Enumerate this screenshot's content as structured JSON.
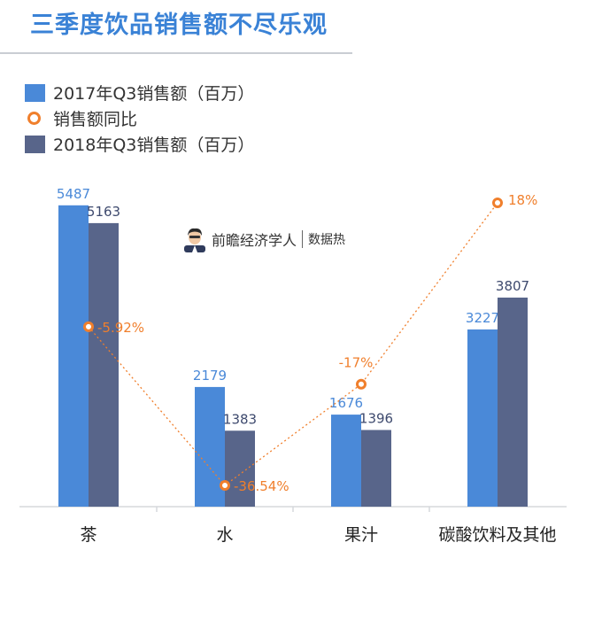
{
  "title": "三季度饮品销售额不尽乐观",
  "source": {
    "name": "前瞻经济学人",
    "tag": "数据热"
  },
  "colors": {
    "title": "#3a82d6",
    "s2017": "#4a89d8",
    "s2018": "#58658a",
    "yoy": "#f07f2c",
    "axis": "#d5d8dc",
    "label_dark": "#3e4a6e"
  },
  "legend": [
    {
      "label": "2017年Q3销售额（百万）",
      "kind": "bar",
      "series": "s2017"
    },
    {
      "label": "销售额同比",
      "kind": "dot",
      "series": "yoy"
    },
    {
      "label": "2018年Q3销售额（百万）",
      "kind": "bar",
      "series": "s2018"
    }
  ],
  "chart_data": {
    "type": "bar",
    "title": "三季度饮品销售额不尽乐观",
    "categories": [
      "茶",
      "水",
      "果汁",
      "碳酸饮料及其他"
    ],
    "series": [
      {
        "name": "2017年Q3销售额（百万）",
        "values": [
          5487,
          2179,
          1676,
          3227
        ]
      },
      {
        "name": "2018年Q3销售额（百万）",
        "values": [
          5163,
          1383,
          1396,
          3807
        ]
      }
    ],
    "line_series": {
      "name": "销售额同比",
      "values": [
        -5.92,
        -36.54,
        -17,
        18
      ],
      "labels": [
        "-5.92%",
        "-36.54%",
        "-17%",
        "18%"
      ]
    },
    "ylim": [
      0,
      6000
    ],
    "grid": false,
    "legend_position": "top-left"
  }
}
